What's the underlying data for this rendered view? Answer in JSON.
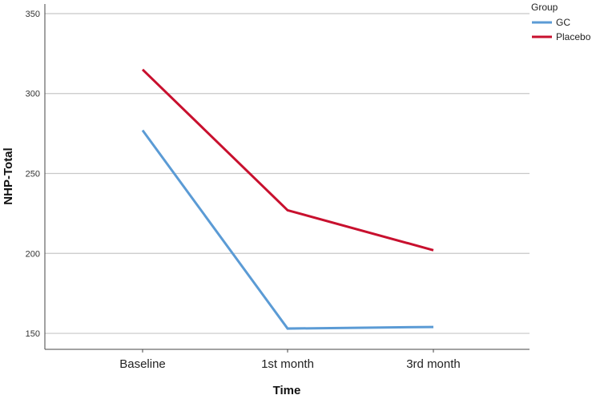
{
  "chart_data": {
    "type": "line",
    "title": "",
    "xlabel": "Time",
    "ylabel": "NHP-Total",
    "categories": [
      "Baseline",
      "1st month",
      "3rd month"
    ],
    "ylim": [
      140,
      356
    ],
    "yticks": [
      150,
      200,
      250,
      300,
      350
    ],
    "grid": true,
    "legend": {
      "title": "Group",
      "placement": "top-right"
    },
    "series": [
      {
        "name": "GC",
        "color": "#5b9bd5",
        "values": [
          277,
          153,
          154
        ]
      },
      {
        "name": "Placebo",
        "color": "#c8102e",
        "values": [
          315,
          227,
          202
        ]
      }
    ]
  }
}
